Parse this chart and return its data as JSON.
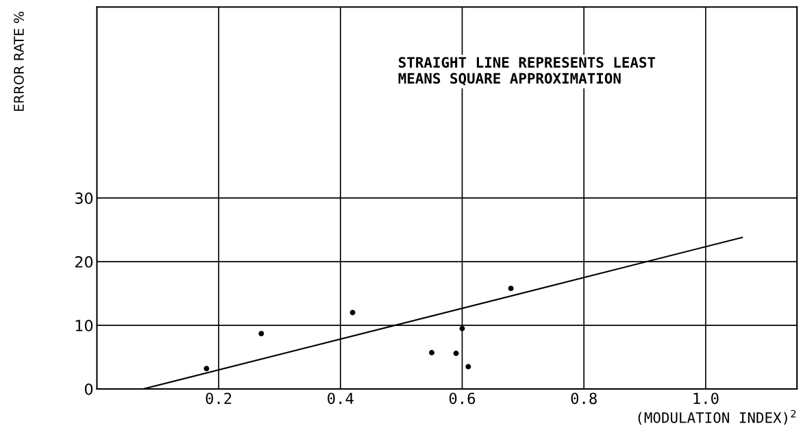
{
  "chart_data": {
    "type": "scatter",
    "xlabel": "(MODULATION INDEX)$^{2}$",
    "ylabel": "ERROR RATE %",
    "annotations": [
      "STRAIGHT LINE REPRESENTS LEAST\nMEANS SQUARE APPROXIMATION"
    ],
    "xlim": [
      0,
      1.15
    ],
    "ylim": [
      0,
      60
    ],
    "xticks": [
      0.2,
      0.4,
      0.6,
      {
        "value": 0.8,
        "label": "0.8"
      },
      {
        "value": 1.0,
        "label": "1.0"
      }
    ],
    "yticks": [
      0,
      10,
      20,
      30
    ],
    "grid": true,
    "legend": false,
    "series": [
      {
        "color": "#000000",
        "marker": "circle",
        "x": [
          0.18,
          0.27,
          0.42,
          0.55,
          0.59,
          0.6,
          0.61,
          0.68
        ],
        "values": [
          3.2,
          8.7,
          12,
          5.7,
          5.6,
          9.5,
          3.5,
          15.8
        ]
      },
      {
        "type": "line",
        "color": "#000000",
        "marker": "none",
        "line_style": "solid",
        "x": [
          0.076,
          1.06
        ],
        "values": [
          0,
          23.8
        ]
      }
    ]
  }
}
